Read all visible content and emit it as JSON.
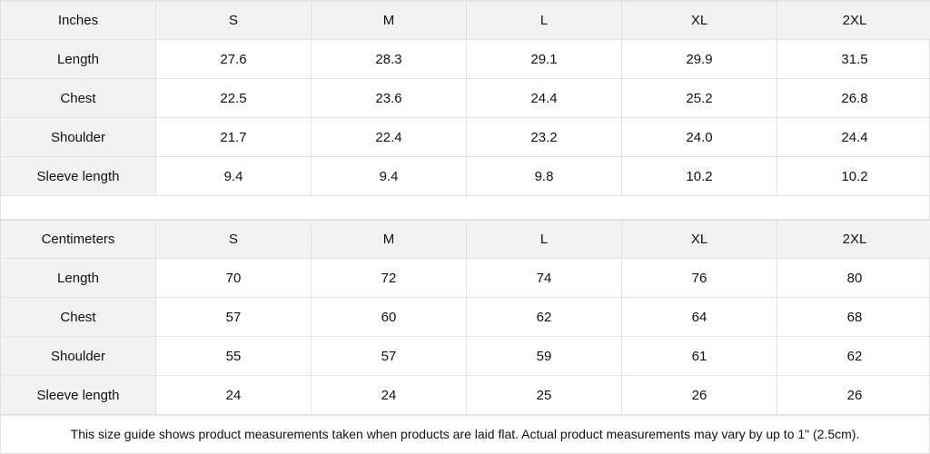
{
  "inches": {
    "header": [
      "Inches",
      "S",
      "M",
      "L",
      "XL",
      "2XL"
    ],
    "rows": [
      [
        "Length",
        "27.6",
        "28.3",
        "29.1",
        "29.9",
        "31.5"
      ],
      [
        "Chest",
        "22.5",
        "23.6",
        "24.4",
        "25.2",
        "26.8"
      ],
      [
        "Shoulder",
        "21.7",
        "22.4",
        "23.2",
        "24.0",
        "24.4"
      ],
      [
        "Sleeve length",
        "9.4",
        "9.4",
        "9.8",
        "10.2",
        "10.2"
      ]
    ]
  },
  "centimeters": {
    "header": [
      "Centimeters",
      "S",
      "M",
      "L",
      "XL",
      "2XL"
    ],
    "rows": [
      [
        "Length",
        "70",
        "72",
        "74",
        "76",
        "80"
      ],
      [
        "Chest",
        "57",
        "60",
        "62",
        "64",
        "68"
      ],
      [
        "Shoulder",
        "55",
        "57",
        "59",
        "61",
        "62"
      ],
      [
        "Sleeve length",
        "24",
        "24",
        "25",
        "26",
        "26"
      ]
    ]
  },
  "footnote": "This size guide shows product measurements taken when products are laid flat.  Actual product measurements may vary by up to 1\" (2.5cm).",
  "colors": {
    "header_bg": "#f2f2f2",
    "border": "#e2e2e2"
  }
}
